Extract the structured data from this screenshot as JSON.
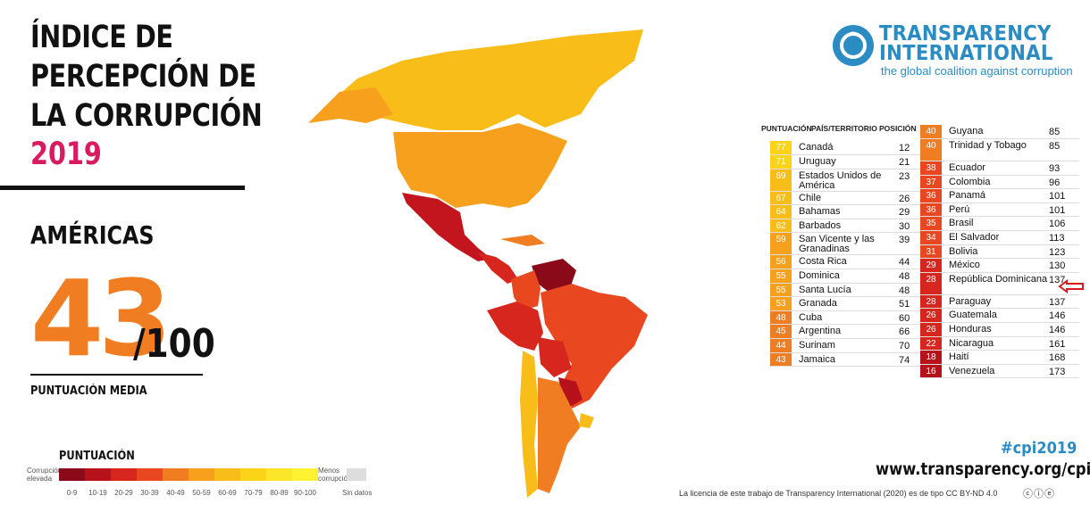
{
  "header": {
    "title_lines": [
      "ÍNDICE DE",
      "PERCEPCIÓN DE",
      "LA CORRUPCIÓN"
    ],
    "year": "2019",
    "region": "AMÉRICAS",
    "score": "43",
    "score_max": "/100",
    "score_label": "PUNTUACIÓN MEDIA"
  },
  "legend": {
    "title": "PUNTUACIÓN",
    "low_label": "Corrupción elevada",
    "high_label": "Menos corrupción",
    "no_data_label": "Sin datos",
    "ranges": [
      "0-9",
      "10-19",
      "20-29",
      "30-39",
      "40-49",
      "50-59",
      "60-69",
      "70-79",
      "80-89",
      "90-100"
    ],
    "colors": [
      "#8b0a1a",
      "#b5121b",
      "#d6261d",
      "#e8471f",
      "#f07d22",
      "#f6a01e",
      "#f9bd1a",
      "#fbd318",
      "#fde52a",
      "#fff233"
    ]
  },
  "brand": {
    "name_line1": "TRANSPARENCY",
    "name_line2": "INTERNATIONAL",
    "tagline": "the global coalition against corruption",
    "hashtag": "#cpi2019",
    "url": "www.transparency.org/cpi",
    "license": "La licencia de este trabajo de Transparency International (2020) es de tipo CC BY-ND 4.0",
    "color": "#2b8cc4"
  },
  "table_headers": {
    "score": "PUNTUACIÓN",
    "country": "PAÍS/TERRITORIO",
    "rank": "POSICIÓN"
  },
  "chart_data": {
    "type": "table",
    "columns": [
      "PUNTUACIÓN",
      "PAÍS/TERRITORIO",
      "POSICIÓN"
    ],
    "rows_left": [
      {
        "score": 77,
        "country": "Canadá",
        "rank": 12
      },
      {
        "score": 71,
        "country": "Uruguay",
        "rank": 21
      },
      {
        "score": 69,
        "country": "Estados Unidos de América",
        "rank": 23
      },
      {
        "score": 67,
        "country": "Chile",
        "rank": 26
      },
      {
        "score": 64,
        "country": "Bahamas",
        "rank": 29
      },
      {
        "score": 62,
        "country": "Barbados",
        "rank": 30
      },
      {
        "score": 59,
        "country": "San Vicente y las Granadinas",
        "rank": 39
      },
      {
        "score": 56,
        "country": "Costa Rica",
        "rank": 44
      },
      {
        "score": 55,
        "country": "Dominica",
        "rank": 48
      },
      {
        "score": 55,
        "country": "Santa Lucía",
        "rank": 48
      },
      {
        "score": 53,
        "country": "Granada",
        "rank": 51
      },
      {
        "score": 48,
        "country": "Cuba",
        "rank": 60
      },
      {
        "score": 45,
        "country": "Argentina",
        "rank": 66
      },
      {
        "score": 44,
        "country": "Surinam",
        "rank": 70
      },
      {
        "score": 43,
        "country": "Jamaica",
        "rank": 74
      }
    ],
    "rows_right": [
      {
        "score": 40,
        "country": "Guyana",
        "rank": 85
      },
      {
        "score": 40,
        "country": "Trinidad y Tobago",
        "rank": 85
      },
      {
        "score": 38,
        "country": "Ecuador",
        "rank": 93
      },
      {
        "score": 37,
        "country": "Colombia",
        "rank": 96
      },
      {
        "score": 36,
        "country": "Panamá",
        "rank": 101
      },
      {
        "score": 36,
        "country": "Perú",
        "rank": 101
      },
      {
        "score": 35,
        "country": "Brasil",
        "rank": 106
      },
      {
        "score": 34,
        "country": "El Salvador",
        "rank": 113
      },
      {
        "score": 31,
        "country": "Bolivia",
        "rank": 123
      },
      {
        "score": 29,
        "country": "México",
        "rank": 130
      },
      {
        "score": 28,
        "country": "República Dominicana",
        "rank": 137
      },
      {
        "score": 28,
        "country": "Paraguay",
        "rank": 137
      },
      {
        "score": 26,
        "country": "Guatemala",
        "rank": 146
      },
      {
        "score": 26,
        "country": "Honduras",
        "rank": 146
      },
      {
        "score": 22,
        "country": "Nicaragua",
        "rank": 161
      },
      {
        "score": 18,
        "country": "Haití",
        "rank": 168
      },
      {
        "score": 16,
        "country": "Venezuela",
        "rank": 173
      }
    ]
  }
}
